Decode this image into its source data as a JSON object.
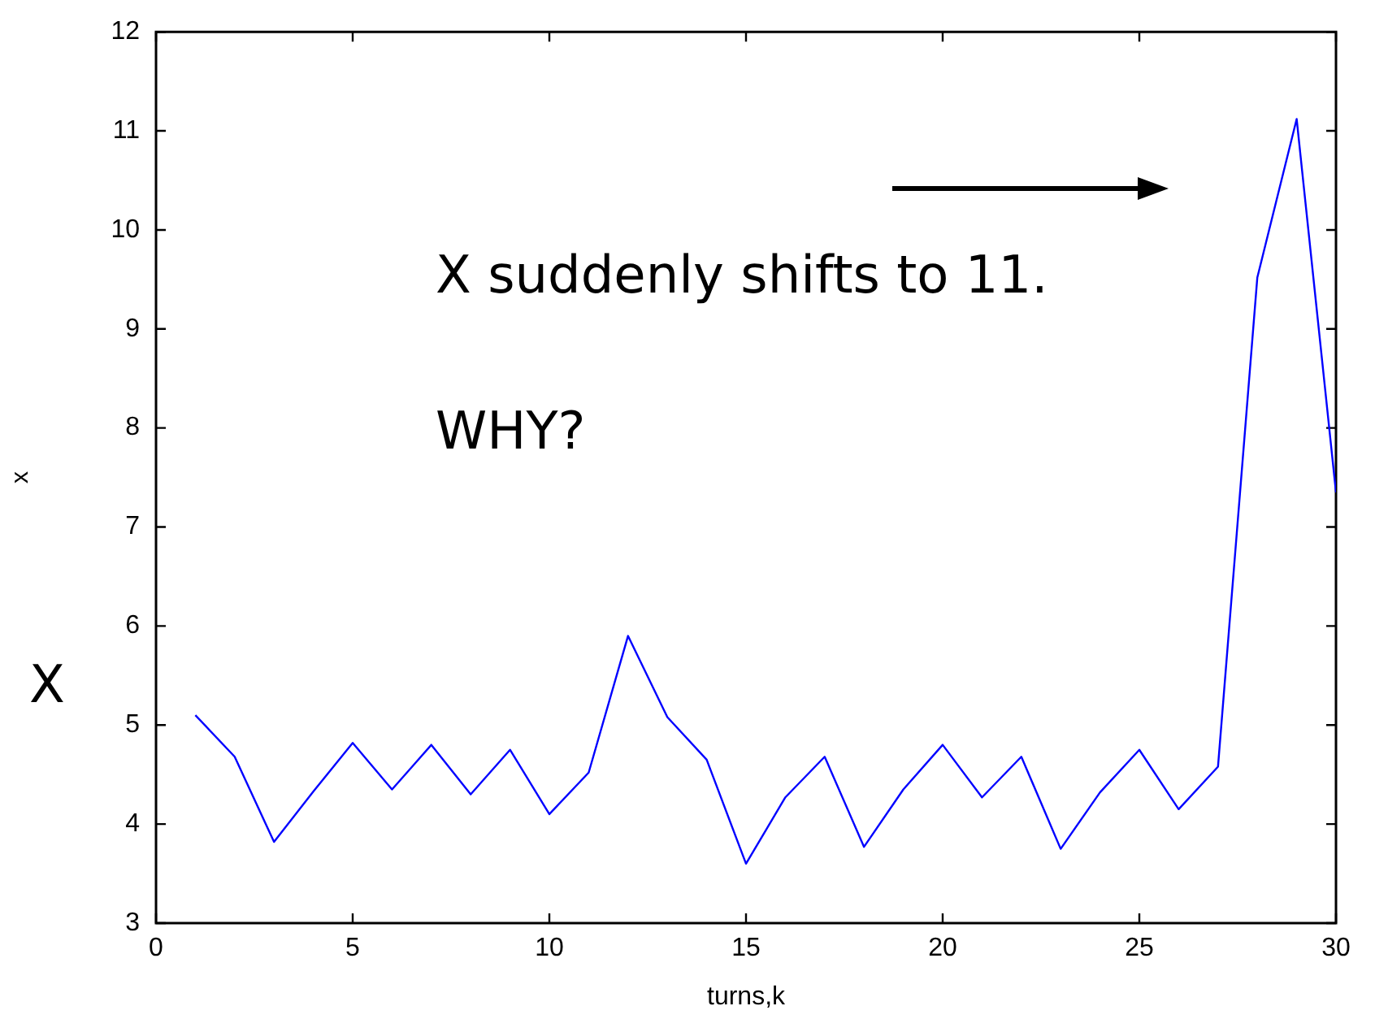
{
  "chart_data": {
    "type": "line",
    "xlabel": "turns,k",
    "ylabel": "x",
    "annotations": [
      "X suddenly shifts to 11.",
      "WHY?",
      "X"
    ],
    "x": [
      1,
      2,
      3,
      4,
      5,
      6,
      7,
      8,
      9,
      10,
      11,
      12,
      13,
      14,
      15,
      16,
      17,
      18,
      19,
      20,
      21,
      22,
      23,
      24,
      25,
      26,
      27,
      28,
      29,
      30
    ],
    "series": [
      {
        "color": "#0000ff",
        "values": [
          5.1,
          4.68,
          3.82,
          4.33,
          4.82,
          4.35,
          4.8,
          4.3,
          4.75,
          4.1,
          4.52,
          5.9,
          5.08,
          4.65,
          3.6,
          4.27,
          4.68,
          3.77,
          4.35,
          4.8,
          4.27,
          4.68,
          3.75,
          4.32,
          4.75,
          4.15,
          4.58,
          9.52,
          11.12,
          7.35
        ]
      }
    ],
    "xlim": [
      0,
      30
    ],
    "xticks": [
      0,
      5,
      10,
      15,
      20,
      25,
      30
    ],
    "ylim": [
      3,
      12
    ],
    "yticks": [
      3,
      4,
      5,
      6,
      7,
      8,
      9,
      10,
      11,
      12
    ],
    "grid": false,
    "legend": false,
    "marker": "none",
    "line_style": "solid"
  }
}
